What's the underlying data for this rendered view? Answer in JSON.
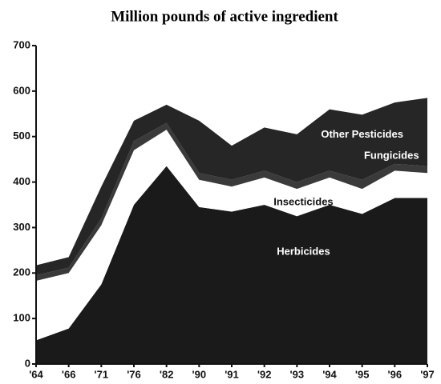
{
  "chart_data": {
    "type": "stacked-area",
    "title": "Million pounds of active ingredient",
    "categories": [
      "'64",
      "'66",
      "'71",
      "'76",
      "'82",
      "'90",
      "'91",
      "'92",
      "'93",
      "'94",
      "'95",
      "'96",
      "'97"
    ],
    "series": [
      {
        "name": "Herbicides",
        "color": "#1a1a1a",
        "values": [
          52,
          78,
          175,
          350,
          435,
          345,
          335,
          350,
          325,
          350,
          330,
          365,
          365
        ]
      },
      {
        "name": "Insecticides",
        "color": "#ffffff",
        "values": [
          131,
          122,
          130,
          120,
          80,
          60,
          55,
          60,
          60,
          60,
          55,
          60,
          55
        ]
      },
      {
        "name": "Fungicides",
        "color": "#3a3a3a",
        "values": [
          12,
          12,
          15,
          20,
          15,
          15,
          15,
          15,
          15,
          15,
          20,
          15,
          15
        ]
      },
      {
        "name": "Other Pesticides",
        "color": "#262626",
        "values": [
          22,
          23,
          70,
          45,
          40,
          115,
          75,
          95,
          105,
          135,
          143,
          135,
          150
        ]
      }
    ],
    "ylim": [
      0,
      700
    ],
    "yticks": [
      0,
      100,
      200,
      300,
      400,
      500,
      600,
      700
    ]
  }
}
